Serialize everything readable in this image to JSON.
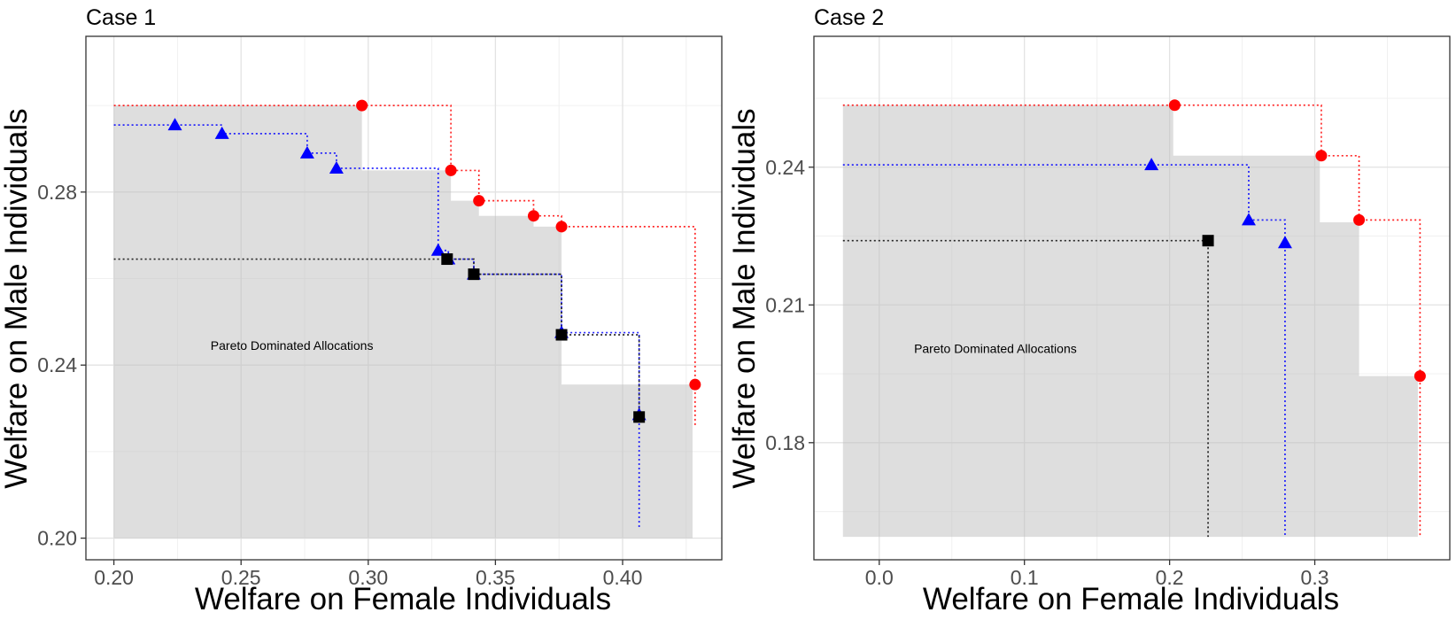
{
  "chart_data": [
    {
      "type": "scatter",
      "title": "Case 1",
      "xlabel": "Welfare on Female Individuals",
      "ylabel": "Welfare on Male Individuals",
      "xlim": [
        0.189,
        0.439
      ],
      "ylim": [
        0.195,
        0.316
      ],
      "xticks": [
        0.2,
        0.25,
        0.3,
        0.35,
        0.4
      ],
      "xtick_labels": [
        "0.20",
        "0.25",
        "0.30",
        "0.35",
        "0.40"
      ],
      "yticks": [
        0.2,
        0.24,
        0.28
      ],
      "ytick_labels": [
        "0.20",
        "0.24",
        "0.28"
      ],
      "grid": true,
      "annotation": {
        "text": "Pareto Dominated Allocations",
        "x": 0.27,
        "y": 0.2445
      },
      "shaded_region": {
        "label": "Pareto Dominated Allocations",
        "x_min": 0.2,
        "x_max": 0.4275,
        "y_min": 0.2,
        "steps": [
          [
            0.2,
            0.3
          ],
          [
            0.2975,
            0.285
          ],
          [
            0.3325,
            0.278
          ],
          [
            0.3435,
            0.2745
          ],
          [
            0.365,
            0.272
          ],
          [
            0.376,
            0.2355
          ],
          [
            0.4275,
            0.2355
          ]
        ]
      },
      "series": [
        {
          "name": "Red frontier",
          "color": "#ff0000",
          "marker": "circle",
          "points": [
            [
              0.2975,
              0.3
            ],
            [
              0.3325,
              0.285
            ],
            [
              0.3435,
              0.278
            ],
            [
              0.365,
              0.2745
            ],
            [
              0.376,
              0.272
            ],
            [
              0.4285,
              0.2355
            ]
          ],
          "line_start": [
            0.2,
            0.3
          ],
          "line_end": [
            0.4285,
            0.226
          ]
        },
        {
          "name": "Blue frontier",
          "color": "#0000ff",
          "marker": "triangle",
          "points": [
            [
              0.224,
              0.2955
            ],
            [
              0.2425,
              0.2935
            ],
            [
              0.276,
              0.289
            ],
            [
              0.2875,
              0.2855
            ],
            [
              0.3275,
              0.2665
            ],
            [
              0.3315,
              0.2645
            ],
            [
              0.3415,
              0.261
            ],
            [
              0.376,
              0.2475
            ],
            [
              0.4065,
              0.2285
            ]
          ],
          "line_start": [
            0.2,
            0.2955
          ],
          "line_end": [
            0.4065,
            0.202
          ]
        },
        {
          "name": "Black frontier",
          "color": "#000000",
          "marker": "square",
          "points": [
            [
              0.331,
              0.2645
            ],
            [
              0.3415,
              0.261
            ],
            [
              0.376,
              0.247
            ],
            [
              0.4065,
              0.228
            ]
          ],
          "line_start": [
            0.2,
            0.2645
          ],
          "line_end": [
            0.4065,
            0.228
          ]
        }
      ]
    },
    {
      "type": "scatter",
      "title": "Case 2",
      "xlabel": "Welfare on Female Individuals",
      "ylabel": "Welfare on Male Individuals",
      "xlim": [
        -0.045,
        0.393
      ],
      "ylim": [
        0.1545,
        0.2685
      ],
      "xticks": [
        0.0,
        0.1,
        0.2,
        0.3
      ],
      "xtick_labels": [
        "0.0",
        "0.1",
        "0.2",
        "0.3"
      ],
      "yticks": [
        0.18,
        0.21,
        0.24
      ],
      "ytick_labels": [
        "0.18",
        "0.21",
        "0.24"
      ],
      "grid": true,
      "annotation": {
        "text": "Pareto Dominated Allocations",
        "x": 0.08,
        "y": 0.2005
      },
      "shaded_region": {
        "label": "Pareto Dominated Allocations",
        "x_min": -0.025,
        "x_max": 0.371,
        "y_min": 0.1595,
        "steps": [
          [
            -0.025,
            0.2535
          ],
          [
            0.2025,
            0.2425
          ],
          [
            0.3035,
            0.228
          ],
          [
            0.3305,
            0.1945
          ],
          [
            0.371,
            0.1945
          ]
        ]
      },
      "series": [
        {
          "name": "Red frontier",
          "color": "#ff0000",
          "marker": "circle",
          "points": [
            [
              0.2035,
              0.2535
            ],
            [
              0.3045,
              0.2425
            ],
            [
              0.3305,
              0.2285
            ],
            [
              0.3725,
              0.1945
            ]
          ],
          "line_start": [
            -0.025,
            0.2535
          ],
          "line_end": [
            0.3725,
            0.1595
          ]
        },
        {
          "name": "Blue frontier",
          "color": "#0000ff",
          "marker": "triangle",
          "points": [
            [
              0.1875,
              0.2405
            ],
            [
              0.2545,
              0.2285
            ],
            [
              0.2795,
              0.2235
            ]
          ],
          "line_start": [
            -0.025,
            0.2405
          ],
          "line_end": [
            0.2795,
            0.1595
          ]
        },
        {
          "name": "Black frontier",
          "color": "#000000",
          "marker": "square",
          "points": [
            [
              0.2265,
              0.224
            ]
          ],
          "line_start": [
            -0.025,
            0.224
          ],
          "line_end": [
            0.2265,
            0.1595
          ]
        }
      ]
    }
  ]
}
